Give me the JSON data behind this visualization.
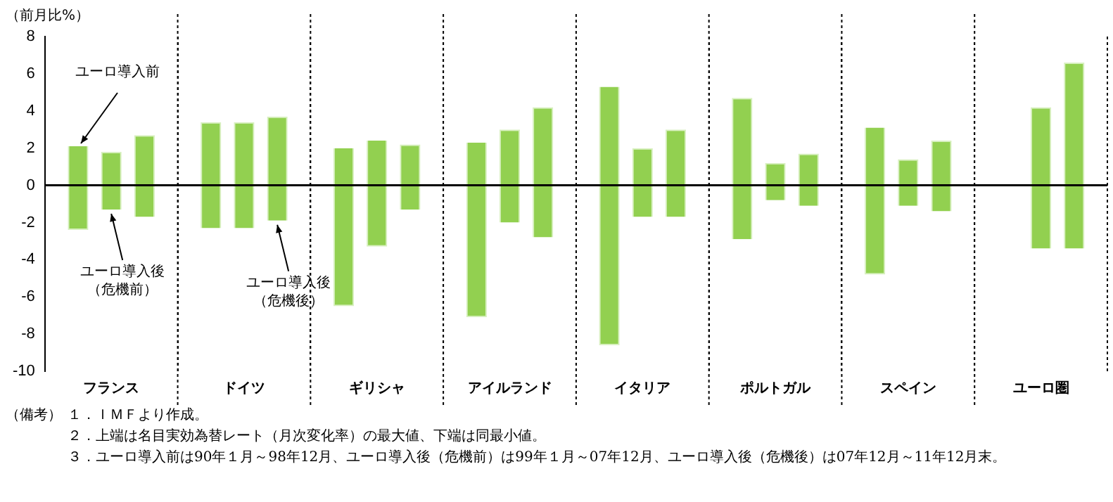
{
  "chart_data": {
    "type": "bar",
    "ylabel": "（前月比%）",
    "categories": [
      "フランス",
      "ドイツ",
      "ギリシャ",
      "アイルランド",
      "イタリア",
      "ポルトガル",
      "スペイン",
      "ユーロ圏"
    ],
    "series": [
      {
        "name": "ユーロ導入前",
        "color": "#92d050",
        "base": [
          -2.4,
          -2.3,
          -6.5,
          -7.1,
          -8.6,
          -2.9,
          -4.8,
          null
        ],
        "values": [
          4.5,
          5.7,
          8.5,
          9.4,
          13.9,
          7.6,
          7.9,
          null
        ]
      },
      {
        "name": "ユーロ導入後（危機前）",
        "color": "#92d050",
        "base": [
          -1.3,
          -2.3,
          -3.3,
          -2.0,
          -1.7,
          -0.8,
          -1.1,
          -3.4
        ],
        "values": [
          3.1,
          5.7,
          5.7,
          5.0,
          3.7,
          2.0,
          2.5,
          7.6
        ]
      },
      {
        "name": "ユーロ導入後（危機後）",
        "color": "#92d050",
        "base": [
          -1.7,
          -1.9,
          -1.3,
          -2.8,
          -1.7,
          -1.1,
          -1.4,
          -3.4
        ],
        "values": [
          4.4,
          5.6,
          3.5,
          7.0,
          4.7,
          2.8,
          3.8,
          10.0
        ]
      }
    ],
    "ylim": [
      -10,
      8
    ],
    "yticks": [
      -10,
      -8,
      -6,
      -4,
      -2,
      0,
      2,
      4,
      6,
      8
    ],
    "grid": "x",
    "legend": false,
    "ref_lines": [
      {
        "axis": "y",
        "value": 0
      }
    ],
    "annotations": [
      "（備考）",
      "１．ＩＭＦより作成。",
      "２．上端は名目実効為替レート（月次変化率）の最大値、下端は同最小値。",
      "３．ユーロ導入前は90年１月～98年12月、ユーロ導入後（危機前）は99年１月～07年12月、ユーロ導入後（危機後）は07年12月～11年12月末。"
    ]
  }
}
